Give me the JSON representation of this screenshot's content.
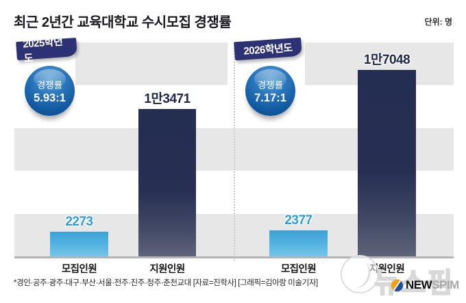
{
  "title": "최근 2년간 교육대학교 수시모집 경쟁률",
  "unit_label": "단위: 명",
  "footnote": "*경인·공주·광주·대구·부산·서울·전주·진주·청주·춘천교대 [자료=진학사] [그래픽=김아랑 미술기자]",
  "watermark": {
    "korean": "뉴스핌",
    "logo_text_1": "NEW",
    "logo_text_2": "SPIM"
  },
  "panels": [
    {
      "year_label": "2025학년도",
      "badge_title": "경쟁률",
      "badge_value": "5.93:1",
      "bars": [
        {
          "label": "모집인원",
          "display": "2273"
        },
        {
          "label": "지원인원",
          "display": "1만3471"
        }
      ]
    },
    {
      "year_label": "2026학년도",
      "badge_title": "경쟁률",
      "badge_value": "7.17:1",
      "bars": [
        {
          "label": "모집인원",
          "display": "2377"
        },
        {
          "label": "지원인원",
          "display": "1만7048"
        }
      ]
    }
  ],
  "colors": {
    "ribbon_navy": "#2c3274",
    "badge_blue": "#11589f",
    "bar_blue": "#4fb0e0",
    "bar_navy": "#272f53",
    "stripe_gray": "#e7e7e7",
    "axis_gray": "#b4b4b4",
    "value_blue_text": "#2e9dd3",
    "value_navy_text": "#1e2748"
  },
  "chart_data": {
    "type": "bar",
    "title": "최근 2년간 교육대학교 수시모집 경쟁률",
    "categories": [
      "모집인원",
      "지원인원"
    ],
    "series": [
      {
        "name": "2025학년도",
        "values": [
          2273,
          13471
        ],
        "competition_rate": "5.93:1"
      },
      {
        "name": "2026학년도",
        "values": [
          2377,
          17048
        ],
        "competition_rate": "7.17:1"
      }
    ],
    "xlabel": "",
    "ylabel": "명",
    "ylim": [
      0,
      17048
    ],
    "grid": "horizontal-bands",
    "legend_position": "none",
    "value_labels": [
      "2273",
      "1만3471",
      "2377",
      "1만7048"
    ]
  }
}
